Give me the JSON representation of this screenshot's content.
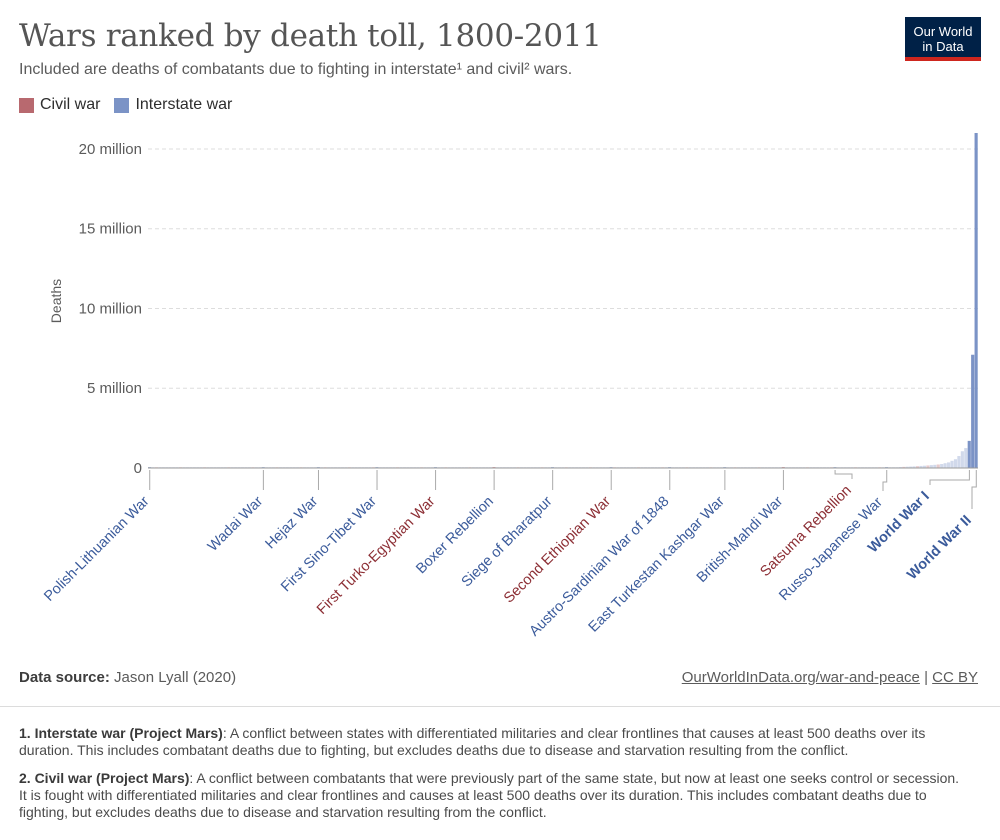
{
  "header": {
    "title": "Wars ranked by death toll, 1800-2011",
    "subtitle": "Included are deaths of combatants due to fighting in interstate¹ and civil² wars.",
    "logo_line1": "Our World",
    "logo_line2": "in Data"
  },
  "colors": {
    "civil": "#b8696f",
    "interstate": "#7b93c6",
    "civil_label": "#8c2e34",
    "interstate_label": "#3b5b9b"
  },
  "legend": {
    "civil": "Civil war",
    "interstate": "Interstate war"
  },
  "footer": {
    "source_label": "Data source:",
    "source_value": "Jason Lyall (2020)",
    "url_text": "OurWorldInData.org/war-and-peace",
    "separator": "|",
    "license": "CC BY"
  },
  "notes": [
    {
      "label": "1. Interstate war (Project Mars)",
      "text": ": A conflict between states with differentiated militaries and clear frontlines that causes at least 500 deaths over its duration. This includes combatant deaths due to fighting, but excludes deaths due to disease and starvation resulting from the conflict."
    },
    {
      "label": "2. Civil war (Project Mars)",
      "text": ": A conflict between combatants that were previously part of the same state, but now at least one seeks control or secession. It is fought with differentiated militaries and clear frontlines and causes at least 500 deaths over its duration. This includes combatant deaths due to fighting, but excludes deaths due to disease and starvation resulting from the conflict."
    }
  ],
  "chart_data": {
    "type": "bar",
    "ylabel": "Deaths",
    "ylim": [
      0,
      21000000
    ],
    "yticks": [
      {
        "value": 0,
        "label": "0"
      },
      {
        "value": 5000000,
        "label": "5 million"
      },
      {
        "value": 10000000,
        "label": "10 million"
      },
      {
        "value": 15000000,
        "label": "15 million"
      },
      {
        "value": 20000000,
        "label": "20 million"
      }
    ],
    "grid": true,
    "legend_position": "top-left",
    "labeled_bars": [
      {
        "name": "Polish-Lithuanian War",
        "type": "interstate",
        "rank": 1
      },
      {
        "name": "Wadai War",
        "type": "interstate",
        "rank": 34
      },
      {
        "name": "Hejaz War",
        "type": "interstate",
        "rank": 50
      },
      {
        "name": "First Sino-Tibet War",
        "type": "interstate",
        "rank": 67
      },
      {
        "name": "First Turko-Egyptian War",
        "type": "civil",
        "rank": 84
      },
      {
        "name": "Boxer Rebellion",
        "type": "interstate",
        "rank": 101
      },
      {
        "name": "Siege of Bharatpur",
        "type": "interstate",
        "rank": 118
      },
      {
        "name": "Second Ethiopian War",
        "type": "civil",
        "rank": 135
      },
      {
        "name": "Austro-Sardinian War of 1848",
        "type": "interstate",
        "rank": 152
      },
      {
        "name": "East Turkestan Kashgar War",
        "type": "interstate",
        "rank": 168
      },
      {
        "name": "British-Mahdi War",
        "type": "interstate",
        "rank": 185
      },
      {
        "name": "Satsuma Rebellion",
        "type": "civil",
        "rank": 200
      },
      {
        "name": "Russo-Japanese War",
        "type": "interstate",
        "rank": 215
      },
      {
        "name": "World War I",
        "type": "interstate",
        "rank": 239,
        "bold": true
      },
      {
        "name": "World War II",
        "type": "interstate",
        "rank": 241,
        "bold": true
      }
    ],
    "top_values": [
      {
        "name": "World War II",
        "type": "interstate",
        "value": 21000000
      },
      {
        "name": "World War I",
        "type": "interstate",
        "value": 7100000
      },
      {
        "name": "",
        "type": "interstate",
        "value": 1700000
      },
      {
        "name": "",
        "type": "interstate",
        "value": 1250000
      },
      {
        "name": "",
        "type": "interstate",
        "value": 1050000
      },
      {
        "name": "",
        "type": "interstate",
        "value": 750000
      },
      {
        "name": "",
        "type": "interstate",
        "value": 550000
      },
      {
        "name": "",
        "type": "interstate",
        "value": 450000
      },
      {
        "name": "",
        "type": "interstate",
        "value": 350000
      },
      {
        "name": "",
        "type": "interstate",
        "value": 300000
      },
      {
        "name": "",
        "type": "interstate",
        "value": 250000
      },
      {
        "name": "",
        "type": "civil",
        "value": 220000
      },
      {
        "name": "",
        "type": "interstate",
        "value": 200000
      },
      {
        "name": "",
        "type": "interstate",
        "value": 180000
      },
      {
        "name": "",
        "type": "civil",
        "value": 160000
      },
      {
        "name": "",
        "type": "interstate",
        "value": 145000
      },
      {
        "name": "",
        "type": "interstate",
        "value": 130000
      },
      {
        "name": "",
        "type": "civil",
        "value": 115000
      },
      {
        "name": "",
        "type": "interstate",
        "value": 100000
      },
      {
        "name": "",
        "type": "interstate",
        "value": 90000
      },
      {
        "name": "",
        "type": "interstate",
        "value": 80000
      },
      {
        "name": "",
        "type": "civil",
        "value": 70000
      },
      {
        "name": "",
        "type": "interstate",
        "value": 60000
      },
      {
        "name": "",
        "type": "interstate",
        "value": 50000
      }
    ],
    "total_bars": 241,
    "remaining_bars_value_approx": 20000
  }
}
